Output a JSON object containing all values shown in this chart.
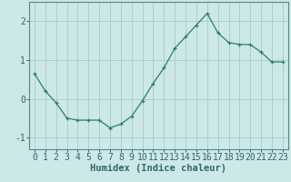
{
  "title": "",
  "xlabel": "Humidex (Indice chaleur)",
  "ylabel": "",
  "x_values": [
    0,
    1,
    2,
    3,
    4,
    5,
    6,
    7,
    8,
    9,
    10,
    11,
    12,
    13,
    14,
    15,
    16,
    17,
    18,
    19,
    20,
    21,
    22,
    23
  ],
  "y_values": [
    0.65,
    0.2,
    -0.1,
    -0.5,
    -0.55,
    -0.55,
    -0.55,
    -0.75,
    -0.65,
    -0.45,
    -0.05,
    0.4,
    0.8,
    1.3,
    1.6,
    1.9,
    2.2,
    1.7,
    1.45,
    1.4,
    1.4,
    1.2,
    0.95,
    0.95
  ],
  "line_color": "#2d7d6e",
  "marker": "+",
  "marker_size": 3,
  "marker_color": "#2d7d6e",
  "bg_color": "#cce8e8",
  "grid_color": "#b0cccc",
  "tick_label_color": "#336666",
  "spine_color": "#558888",
  "xlim": [
    -0.5,
    23.5
  ],
  "ylim": [
    -1.3,
    2.5
  ],
  "yticks": [
    -1,
    0,
    1,
    2
  ],
  "xticks": [
    0,
    1,
    2,
    3,
    4,
    5,
    6,
    7,
    8,
    9,
    10,
    11,
    12,
    13,
    14,
    15,
    16,
    17,
    18,
    19,
    20,
    21,
    22,
    23
  ],
  "xlabel_fontsize": 7.5,
  "tick_fontsize": 7
}
